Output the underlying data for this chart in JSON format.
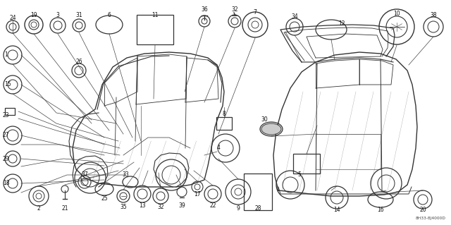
{
  "bg_color": "#ffffff",
  "diagram_code": "8H33-8J4000D",
  "fig_width": 6.4,
  "fig_height": 3.19,
  "dpi": 100,
  "parts_color": "#333333",
  "line_color": "#444444",
  "car_color": "#333333"
}
